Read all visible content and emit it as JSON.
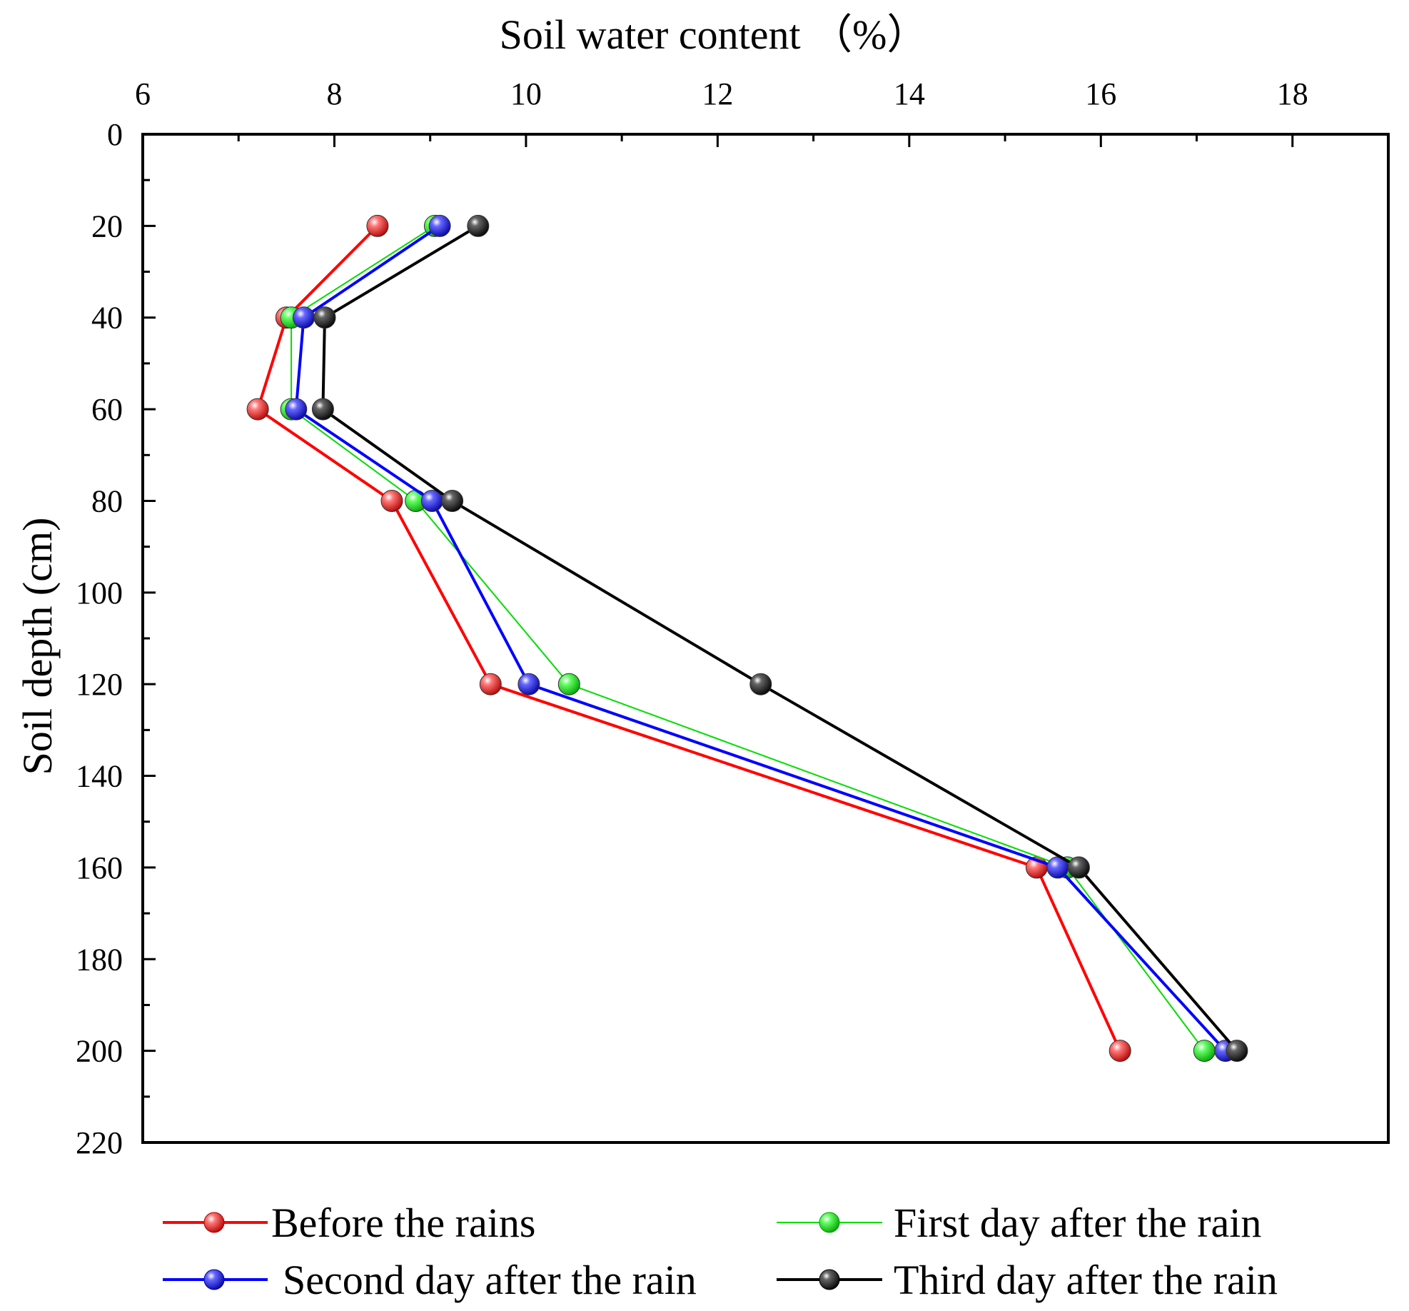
{
  "chart_data": {
    "type": "line",
    "orientation": "profile",
    "title": "",
    "xlabel": "Soil water content （%）",
    "ylabel": "Soil depth (cm)",
    "xlim": [
      6,
      19
    ],
    "ylim": [
      0,
      220
    ],
    "x_axis_position": "top",
    "y_axis_inverted": true,
    "xticks": [
      6,
      8,
      10,
      12,
      14,
      16,
      18
    ],
    "yticks": [
      0,
      20,
      40,
      60,
      80,
      100,
      120,
      140,
      160,
      180,
      200,
      220
    ],
    "grid": false,
    "legend_position": "bottom",
    "depth": [
      20,
      40,
      60,
      80,
      120,
      160,
      200
    ],
    "series": [
      {
        "name": "Before the rains",
        "color": "#ff0000",
        "line_weight": "medium",
        "values": [
          8.45,
          7.5,
          7.2,
          8.6,
          9.63,
          15.33,
          16.2
        ]
      },
      {
        "name": "First day after the rain",
        "color": "#00dd00",
        "line_weight": "thin",
        "values": [
          9.05,
          7.55,
          7.55,
          8.85,
          10.45,
          15.65,
          17.08
        ]
      },
      {
        "name": "Second day after the rain",
        "color": "#0000ff",
        "line_weight": "medium",
        "values": [
          9.1,
          7.68,
          7.6,
          9.02,
          10.03,
          15.55,
          17.3
        ]
      },
      {
        "name": "Third day after the rain",
        "color": "#000000",
        "line_weight": "medium",
        "values": [
          9.5,
          7.9,
          7.88,
          9.23,
          12.45,
          15.77,
          17.42
        ]
      }
    ]
  }
}
